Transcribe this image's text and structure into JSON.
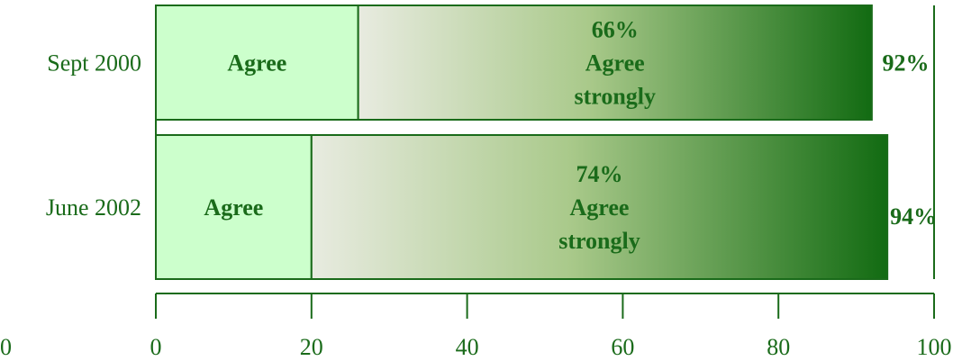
{
  "chart_data": {
    "type": "bar",
    "orientation": "horizontal",
    "stacked": true,
    "categories": [
      "Sept 2000",
      "June 2002"
    ],
    "series": [
      {
        "name": "Agree",
        "values": [
          26,
          20
        ]
      },
      {
        "name": "Agree strongly",
        "values": [
          66,
          74
        ]
      }
    ],
    "segment_text": [
      [
        "Agree",
        "66%|Agree|strongly"
      ],
      [
        "Agree",
        "74%|Agree|strongly"
      ]
    ],
    "totals": [
      "92%",
      "94%"
    ],
    "xlim": [
      0,
      100
    ],
    "xticks": [
      0,
      20,
      40,
      60,
      80,
      100
    ],
    "xtick_labels": [
      "0",
      "20",
      "40",
      "60",
      "80",
      "100"
    ],
    "left_edge_label": "00",
    "colors": {
      "agree_fill": "#ccffcc",
      "strong_start": "#e8ebe0",
      "strong_mid": "#a9c98a",
      "strong_end": "#126b12",
      "text": "#1a6b1a",
      "frame": "#1a6b1a"
    }
  }
}
